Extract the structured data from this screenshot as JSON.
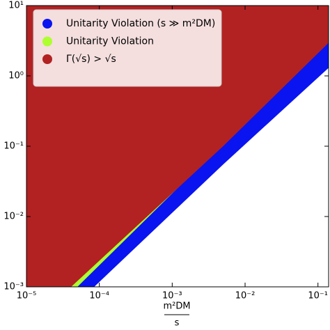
{
  "chart_data": {
    "type": "region",
    "log_x": true,
    "log_y": true,
    "x_label": {
      "numerator": "m²DM",
      "denominator": "s"
    },
    "xlim": [
      1e-05,
      0.14
    ],
    "ylim": [
      0.001,
      10
    ],
    "xticks": [
      {
        "value": 1e-05,
        "label": "10⁻⁵"
      },
      {
        "value": 0.0001,
        "label": "10⁻⁴"
      },
      {
        "value": 0.001,
        "label": "10⁻³"
      },
      {
        "value": 0.01,
        "label": "10⁻²"
      },
      {
        "value": 0.1,
        "label": "10⁻¹"
      }
    ],
    "yticks": [
      {
        "value": 0.001,
        "label": "10⁻³"
      },
      {
        "value": 0.01,
        "label": "10⁻²"
      },
      {
        "value": 0.1,
        "label": "10⁻¹"
      },
      {
        "value": 1,
        "label": "10⁰"
      },
      {
        "value": 10,
        "label": "10¹"
      }
    ],
    "legend": "upper left",
    "series": [
      {
        "name": "Unitarity Violation (s ≫ m²DM)",
        "color": "#0a14f0",
        "x": [
          8.5e-05,
          0.005,
          0.14
        ],
        "values": [
          0.001,
          0.055,
          1.3
        ]
      },
      {
        "name": "Unitarity Violation",
        "color": "#adff2f",
        "x": [
          5e-05,
          0.005,
          0.14
        ],
        "values": [
          0.001,
          0.11,
          4.2
        ]
      },
      {
        "name": "Γ(√s) > √s",
        "color": "#b22222",
        "x": [
          4.1e-05,
          0.005,
          0.14
        ],
        "values": [
          0.001,
          0.1,
          2.95
        ]
      }
    ]
  }
}
